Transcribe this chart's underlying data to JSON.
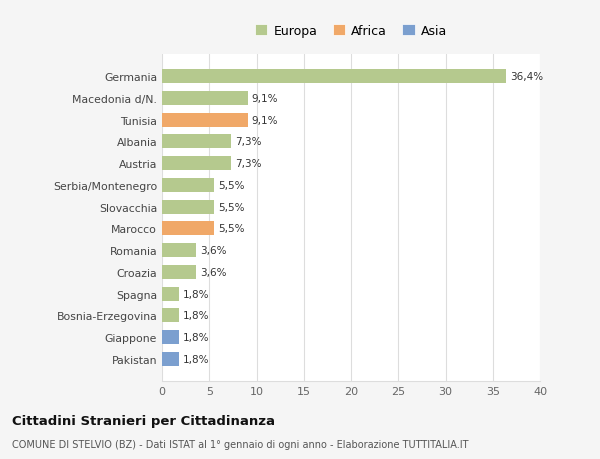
{
  "countries": [
    "Germania",
    "Macedonia d/N.",
    "Tunisia",
    "Albania",
    "Austria",
    "Serbia/Montenegro",
    "Slovacchia",
    "Marocco",
    "Romania",
    "Croazia",
    "Spagna",
    "Bosnia-Erzegovina",
    "Giappone",
    "Pakistan"
  ],
  "values": [
    36.4,
    9.1,
    9.1,
    7.3,
    7.3,
    5.5,
    5.5,
    5.5,
    3.6,
    3.6,
    1.8,
    1.8,
    1.8,
    1.8
  ],
  "labels": [
    "36,4%",
    "9,1%",
    "9,1%",
    "7,3%",
    "7,3%",
    "5,5%",
    "5,5%",
    "5,5%",
    "3,6%",
    "3,6%",
    "1,8%",
    "1,8%",
    "1,8%",
    "1,8%"
  ],
  "colors": [
    "#b5c98e",
    "#b5c98e",
    "#f0a868",
    "#b5c98e",
    "#b5c98e",
    "#b5c98e",
    "#b5c98e",
    "#f0a868",
    "#b5c98e",
    "#b5c98e",
    "#b5c98e",
    "#b5c98e",
    "#7b9fcf",
    "#7b9fcf"
  ],
  "legend_labels": [
    "Europa",
    "Africa",
    "Asia"
  ],
  "legend_colors": [
    "#b5c98e",
    "#f0a868",
    "#7b9fcf"
  ],
  "xlim": [
    0,
    40
  ],
  "xticks": [
    0,
    5,
    10,
    15,
    20,
    25,
    30,
    35,
    40
  ],
  "title": "Cittadini Stranieri per Cittadinanza",
  "subtitle": "COMUNE DI STELVIO (BZ) - Dati ISTAT al 1° gennaio di ogni anno - Elaborazione TUTTITALIA.IT",
  "background_color": "#f5f5f5",
  "bar_background": "#ffffff",
  "grid_color": "#dddddd"
}
